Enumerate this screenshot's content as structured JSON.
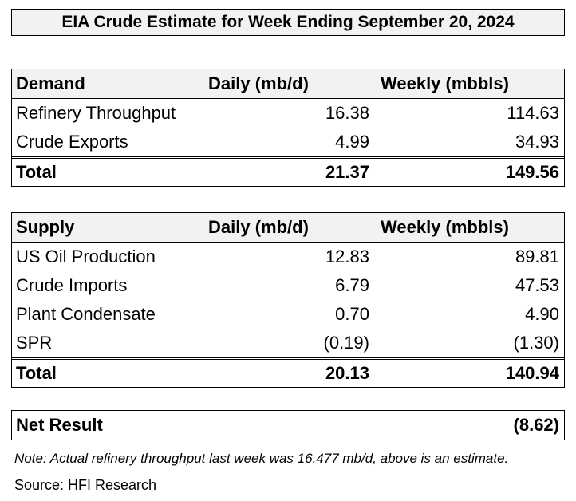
{
  "title": "EIA Crude Estimate for Week Ending September 20, 2024",
  "demand": {
    "header": {
      "label": "Demand",
      "daily": "Daily (mb/d)",
      "weekly": "Weekly (mbbls)"
    },
    "rows": [
      {
        "label": "Refinery Throughput",
        "daily": "16.38",
        "weekly": "114.63"
      },
      {
        "label": "Crude Exports",
        "daily": "4.99",
        "weekly": "34.93"
      }
    ],
    "total": {
      "label": "Total",
      "daily": "21.37",
      "weekly": "149.56"
    }
  },
  "supply": {
    "header": {
      "label": "Supply",
      "daily": "Daily (mb/d)",
      "weekly": "Weekly (mbbls)"
    },
    "rows": [
      {
        "label": "US Oil Production",
        "daily": "12.83",
        "weekly": "89.81"
      },
      {
        "label": "Crude Imports",
        "daily": "6.79",
        "weekly": "47.53"
      },
      {
        "label": "Plant Condensate",
        "daily": "0.70",
        "weekly": "4.90"
      },
      {
        "label": "SPR",
        "daily": "(0.19)",
        "weekly": "(1.30)"
      }
    ],
    "total": {
      "label": "Total",
      "daily": "20.13",
      "weekly": "140.94"
    }
  },
  "net_result": {
    "label": "Net Result",
    "value": "(8.62)"
  },
  "note": "Note: Actual refinery throughput last week was 16.477 mb/d, above is an estimate.",
  "source": "Source: HFI Research"
}
